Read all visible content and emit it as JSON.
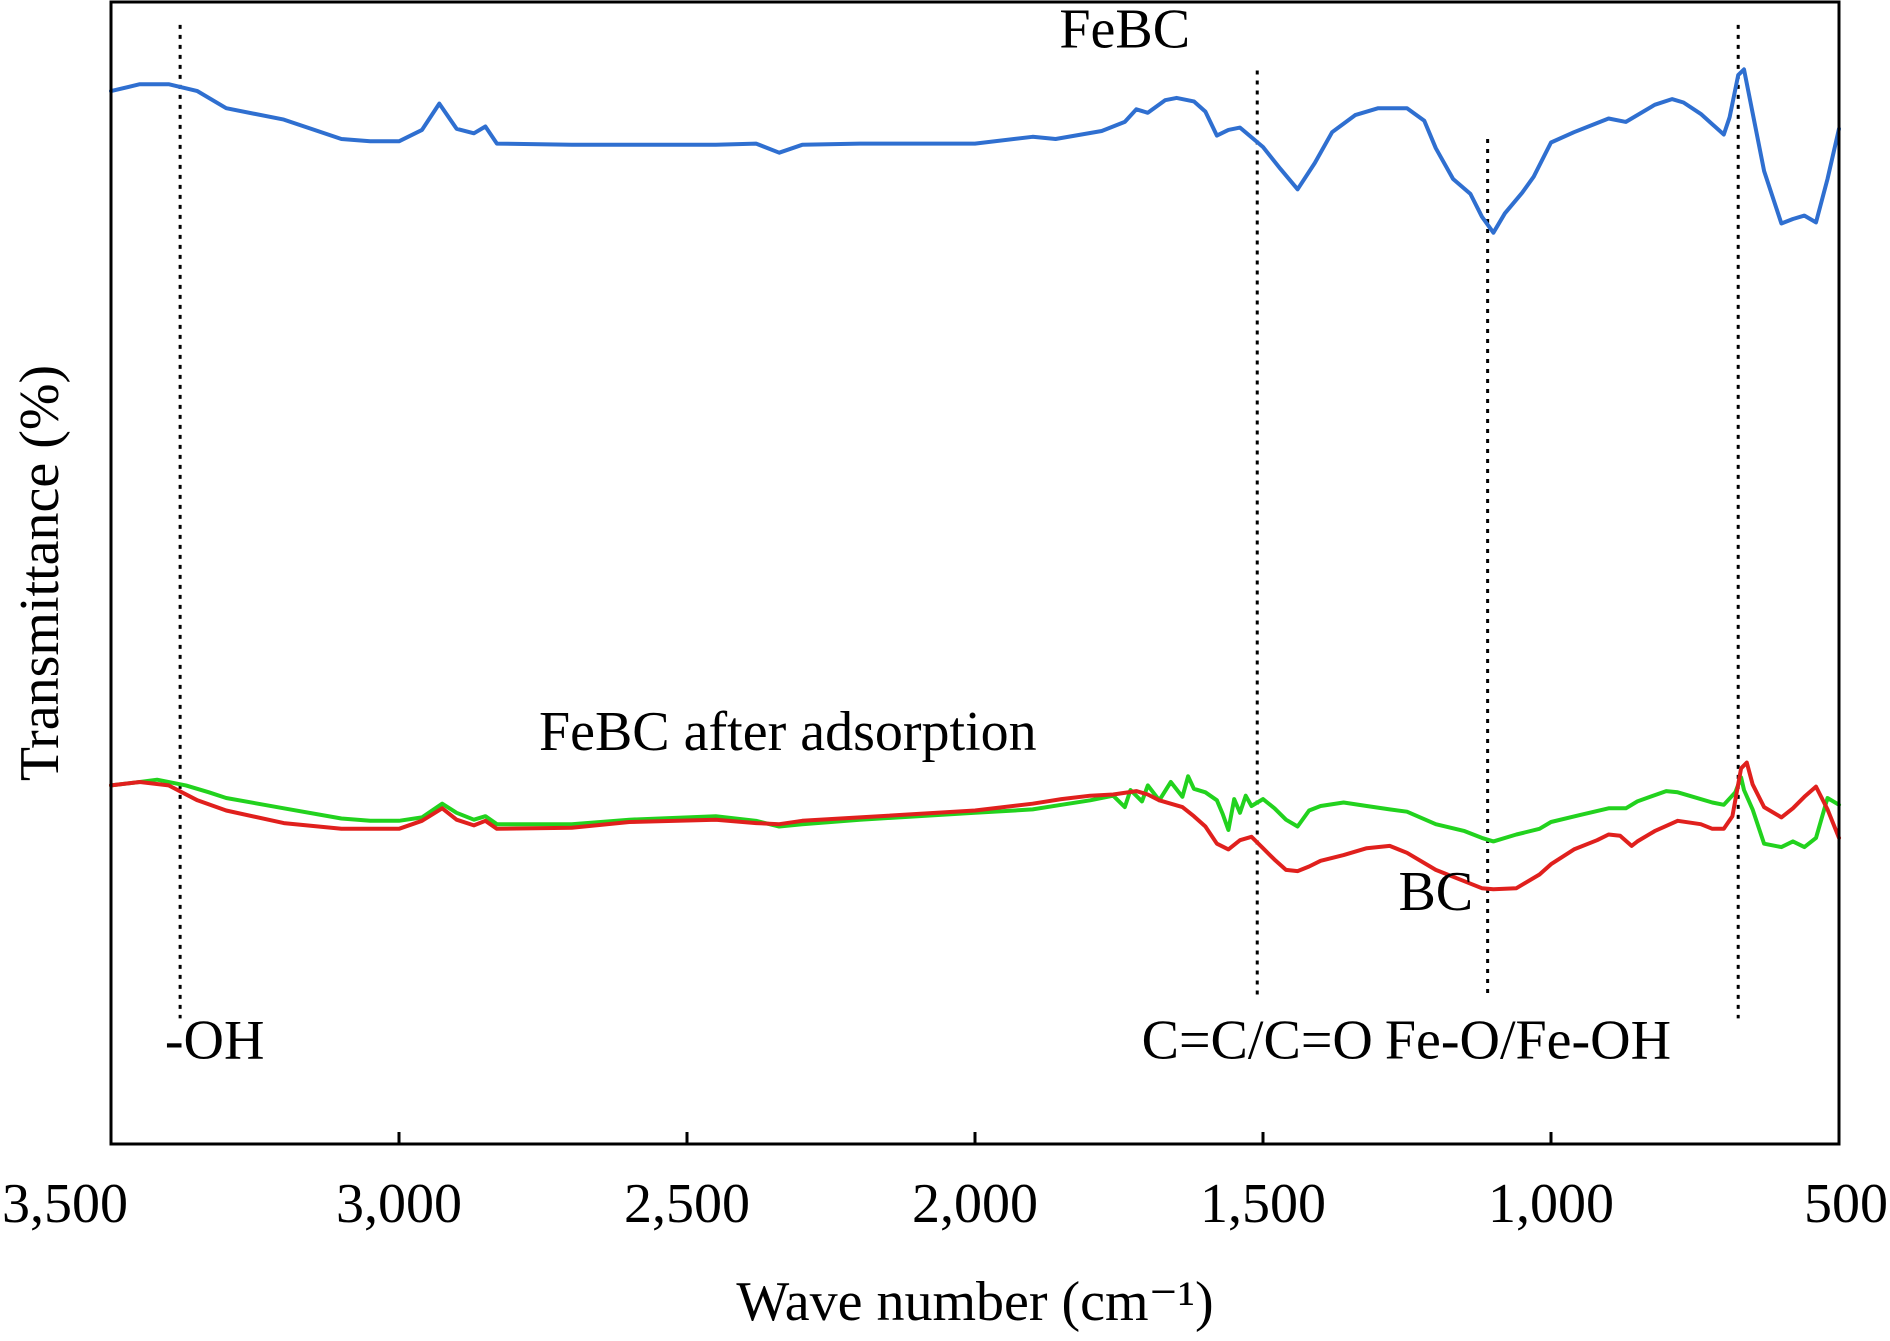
{
  "chart_data": {
    "type": "line",
    "xlabel": "Wave number (cm⁻¹)",
    "ylabel": "Transmittance (%)",
    "xlim": [
      3500,
      500
    ],
    "x_reversed": true,
    "ylim": [
      0,
      100
    ],
    "y_ticks_shown": false,
    "grid": false,
    "x_ticks": [
      {
        "value": 3500,
        "label": "3,500"
      },
      {
        "value": 3000,
        "label": "3,000"
      },
      {
        "value": 2500,
        "label": "2,500"
      },
      {
        "value": 2000,
        "label": "2,000"
      },
      {
        "value": 1500,
        "label": "1,500"
      },
      {
        "value": 1000,
        "label": "1,000"
      },
      {
        "value": 500,
        "label": "500"
      }
    ],
    "series": [
      {
        "name": "FeBC",
        "color": "#2f6fd0",
        "label_at": [
          1740,
          96
        ],
        "points": [
          [
            3500,
            92.2
          ],
          [
            3450,
            92.8
          ],
          [
            3400,
            92.8
          ],
          [
            3350,
            92.2
          ],
          [
            3300,
            90.7
          ],
          [
            3200,
            89.7
          ],
          [
            3100,
            88.0
          ],
          [
            3050,
            87.8
          ],
          [
            3000,
            87.8
          ],
          [
            2960,
            88.8
          ],
          [
            2930,
            91.1
          ],
          [
            2900,
            88.9
          ],
          [
            2870,
            88.5
          ],
          [
            2850,
            89.1
          ],
          [
            2830,
            87.6
          ],
          [
            2700,
            87.5
          ],
          [
            2600,
            87.5
          ],
          [
            2450,
            87.5
          ],
          [
            2380,
            87.6
          ],
          [
            2340,
            86.8
          ],
          [
            2300,
            87.5
          ],
          [
            2200,
            87.6
          ],
          [
            2000,
            87.6
          ],
          [
            1900,
            88.2
          ],
          [
            1860,
            88.0
          ],
          [
            1780,
            88.7
          ],
          [
            1740,
            89.5
          ],
          [
            1720,
            90.6
          ],
          [
            1700,
            90.3
          ],
          [
            1670,
            91.4
          ],
          [
            1650,
            91.6
          ],
          [
            1620,
            91.3
          ],
          [
            1600,
            90.4
          ],
          [
            1580,
            88.3
          ],
          [
            1560,
            88.8
          ],
          [
            1540,
            89.0
          ],
          [
            1500,
            87.3
          ],
          [
            1470,
            85.4
          ],
          [
            1440,
            83.6
          ],
          [
            1410,
            85.9
          ],
          [
            1380,
            88.6
          ],
          [
            1340,
            90.1
          ],
          [
            1300,
            90.7
          ],
          [
            1250,
            90.7
          ],
          [
            1220,
            89.6
          ],
          [
            1200,
            87.2
          ],
          [
            1170,
            84.5
          ],
          [
            1140,
            83.2
          ],
          [
            1120,
            81.2
          ],
          [
            1100,
            79.8
          ],
          [
            1080,
            81.5
          ],
          [
            1050,
            83.3
          ],
          [
            1030,
            84.7
          ],
          [
            1000,
            87.7
          ],
          [
            960,
            88.6
          ],
          [
            900,
            89.8
          ],
          [
            870,
            89.5
          ],
          [
            860,
            89.8
          ],
          [
            820,
            91.0
          ],
          [
            790,
            91.5
          ],
          [
            770,
            91.2
          ],
          [
            740,
            90.2
          ],
          [
            720,
            89.3
          ],
          [
            700,
            88.4
          ],
          [
            690,
            89.9
          ],
          [
            675,
            93.6
          ],
          [
            665,
            94.1
          ],
          [
            650,
            90.3
          ],
          [
            630,
            85.2
          ],
          [
            600,
            80.6
          ],
          [
            580,
            81.0
          ],
          [
            560,
            81.3
          ],
          [
            540,
            80.7
          ],
          [
            520,
            84.5
          ],
          [
            500,
            88.9
          ]
        ]
      },
      {
        "name": "FeBC after adsorption",
        "color": "#22d21e",
        "label_at": [
          2325,
          34.5
        ],
        "points": [
          [
            3500,
            31.4
          ],
          [
            3450,
            31.7
          ],
          [
            3420,
            31.9
          ],
          [
            3370,
            31.4
          ],
          [
            3330,
            30.8
          ],
          [
            3300,
            30.3
          ],
          [
            3200,
            29.4
          ],
          [
            3100,
            28.5
          ],
          [
            3050,
            28.3
          ],
          [
            3000,
            28.3
          ],
          [
            2960,
            28.6
          ],
          [
            2925,
            29.8
          ],
          [
            2900,
            29.0
          ],
          [
            2870,
            28.4
          ],
          [
            2850,
            28.7
          ],
          [
            2830,
            28.0
          ],
          [
            2700,
            28.0
          ],
          [
            2600,
            28.4
          ],
          [
            2450,
            28.7
          ],
          [
            2380,
            28.3
          ],
          [
            2340,
            27.8
          ],
          [
            2300,
            28.0
          ],
          [
            2200,
            28.4
          ],
          [
            2000,
            29.0
          ],
          [
            1900,
            29.3
          ],
          [
            1850,
            29.7
          ],
          [
            1800,
            30.1
          ],
          [
            1760,
            30.5
          ],
          [
            1740,
            29.5
          ],
          [
            1730,
            31.0
          ],
          [
            1710,
            30.0
          ],
          [
            1700,
            31.4
          ],
          [
            1680,
            30.1
          ],
          [
            1660,
            31.7
          ],
          [
            1640,
            30.4
          ],
          [
            1630,
            32.2
          ],
          [
            1620,
            31.1
          ],
          [
            1600,
            30.8
          ],
          [
            1580,
            30.1
          ],
          [
            1570,
            28.9
          ],
          [
            1560,
            27.5
          ],
          [
            1550,
            30.2
          ],
          [
            1540,
            29.0
          ],
          [
            1530,
            30.5
          ],
          [
            1520,
            29.6
          ],
          [
            1500,
            30.2
          ],
          [
            1480,
            29.4
          ],
          [
            1460,
            28.4
          ],
          [
            1440,
            27.8
          ],
          [
            1420,
            29.2
          ],
          [
            1400,
            29.6
          ],
          [
            1360,
            29.9
          ],
          [
            1320,
            29.6
          ],
          [
            1280,
            29.3
          ],
          [
            1250,
            29.1
          ],
          [
            1200,
            28.0
          ],
          [
            1150,
            27.4
          ],
          [
            1120,
            26.8
          ],
          [
            1100,
            26.5
          ],
          [
            1060,
            27.1
          ],
          [
            1020,
            27.6
          ],
          [
            1000,
            28.2
          ],
          [
            950,
            28.8
          ],
          [
            900,
            29.4
          ],
          [
            870,
            29.4
          ],
          [
            850,
            30.0
          ],
          [
            800,
            30.9
          ],
          [
            780,
            30.8
          ],
          [
            760,
            30.5
          ],
          [
            720,
            29.9
          ],
          [
            700,
            29.7
          ],
          [
            680,
            30.8
          ],
          [
            670,
            32.1
          ],
          [
            665,
            31.0
          ],
          [
            650,
            29.3
          ],
          [
            630,
            26.3
          ],
          [
            600,
            26.0
          ],
          [
            580,
            26.5
          ],
          [
            560,
            26.0
          ],
          [
            540,
            26.8
          ],
          [
            520,
            30.3
          ],
          [
            500,
            29.7
          ]
        ]
      },
      {
        "name": "BC",
        "color": "#e0201d",
        "label_at": [
          1200,
          20.5
        ],
        "points": [
          [
            3500,
            31.4
          ],
          [
            3450,
            31.7
          ],
          [
            3400,
            31.4
          ],
          [
            3350,
            30.1
          ],
          [
            3300,
            29.2
          ],
          [
            3200,
            28.1
          ],
          [
            3100,
            27.6
          ],
          [
            3050,
            27.6
          ],
          [
            3000,
            27.6
          ],
          [
            2960,
            28.3
          ],
          [
            2925,
            29.4
          ],
          [
            2900,
            28.4
          ],
          [
            2870,
            27.9
          ],
          [
            2850,
            28.3
          ],
          [
            2830,
            27.6
          ],
          [
            2700,
            27.7
          ],
          [
            2600,
            28.2
          ],
          [
            2450,
            28.4
          ],
          [
            2380,
            28.1
          ],
          [
            2340,
            28.0
          ],
          [
            2300,
            28.3
          ],
          [
            2200,
            28.6
          ],
          [
            2000,
            29.2
          ],
          [
            1900,
            29.8
          ],
          [
            1850,
            30.2
          ],
          [
            1800,
            30.5
          ],
          [
            1760,
            30.6
          ],
          [
            1720,
            30.9
          ],
          [
            1700,
            30.6
          ],
          [
            1680,
            30.1
          ],
          [
            1660,
            29.8
          ],
          [
            1640,
            29.5
          ],
          [
            1620,
            28.7
          ],
          [
            1600,
            27.8
          ],
          [
            1580,
            26.3
          ],
          [
            1560,
            25.8
          ],
          [
            1540,
            26.6
          ],
          [
            1520,
            26.9
          ],
          [
            1500,
            25.9
          ],
          [
            1480,
            24.9
          ],
          [
            1460,
            24.0
          ],
          [
            1440,
            23.9
          ],
          [
            1420,
            24.3
          ],
          [
            1400,
            24.8
          ],
          [
            1360,
            25.3
          ],
          [
            1320,
            25.9
          ],
          [
            1280,
            26.1
          ],
          [
            1250,
            25.5
          ],
          [
            1200,
            24.0
          ],
          [
            1150,
            23.0
          ],
          [
            1120,
            22.4
          ],
          [
            1100,
            22.3
          ],
          [
            1060,
            22.4
          ],
          [
            1020,
            23.6
          ],
          [
            1000,
            24.5
          ],
          [
            960,
            25.8
          ],
          [
            920,
            26.6
          ],
          [
            900,
            27.1
          ],
          [
            880,
            27.0
          ],
          [
            860,
            26.1
          ],
          [
            850,
            26.5
          ],
          [
            820,
            27.4
          ],
          [
            780,
            28.3
          ],
          [
            740,
            28.0
          ],
          [
            720,
            27.6
          ],
          [
            700,
            27.6
          ],
          [
            685,
            28.7
          ],
          [
            670,
            32.9
          ],
          [
            660,
            33.4
          ],
          [
            650,
            31.5
          ],
          [
            630,
            29.5
          ],
          [
            600,
            28.6
          ],
          [
            580,
            29.4
          ],
          [
            560,
            30.4
          ],
          [
            540,
            31.3
          ],
          [
            520,
            29.3
          ],
          [
            500,
            26.8
          ]
        ]
      }
    ],
    "guides": [
      {
        "x": 3380,
        "label": "-OH",
        "label_at": [
          3320,
          7.5
        ],
        "y_top": 98,
        "y_bottom": 11
      },
      {
        "x": 1510,
        "label": "C=C/C=O",
        "label_at": [
          1510,
          7.5
        ],
        "y_top": 94,
        "y_bottom": 13
      },
      {
        "x": 1110,
        "label": "Fe-O/Fe-OH",
        "label_at": [
          1040,
          7.5
        ],
        "y_top": 88,
        "y_bottom": 13
      },
      {
        "x": 675,
        "label": "",
        "y_top": 98,
        "y_bottom": 11
      }
    ]
  }
}
